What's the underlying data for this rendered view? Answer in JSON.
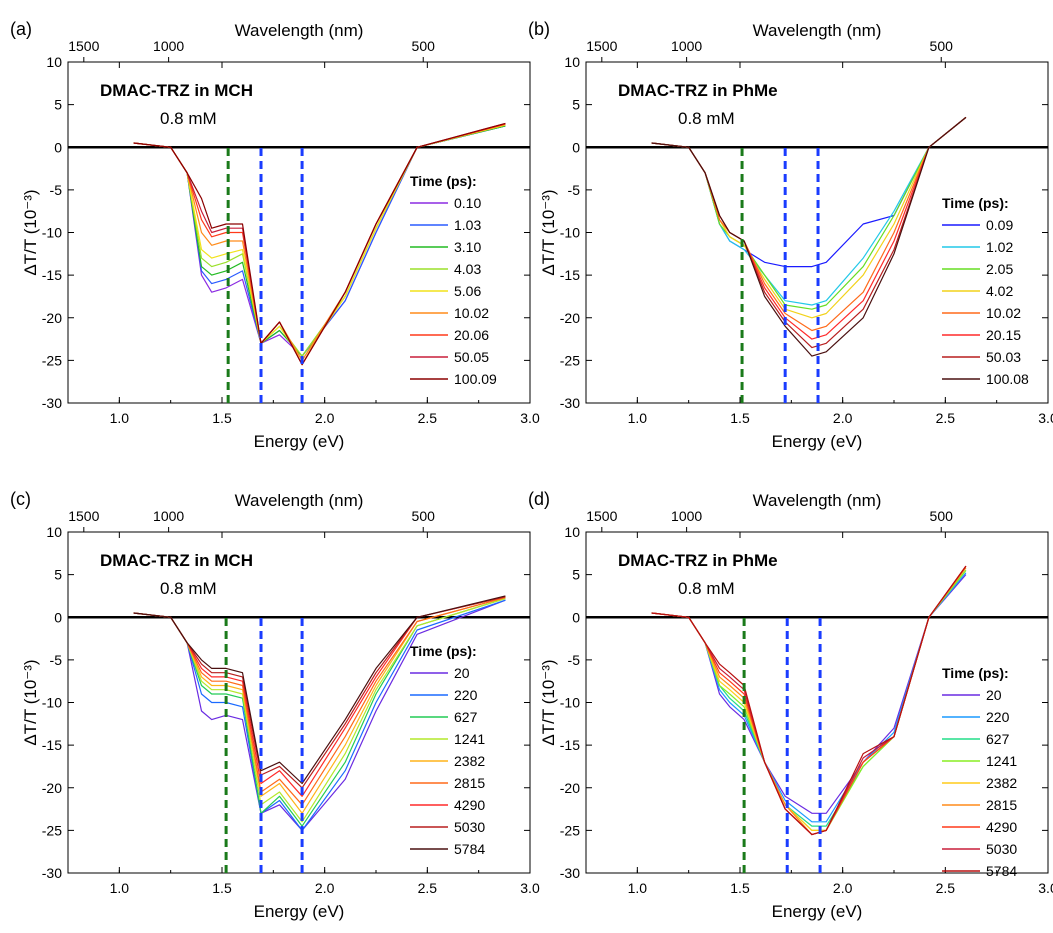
{
  "chart_data": [
    {
      "panel_label": "(a)",
      "type": "line",
      "title": "DMAC-TRZ in MCH",
      "subtitle": "0.8 mM",
      "xlabel": "Energy (eV)",
      "ylabel": "ΔT/T (10⁻³)",
      "top_xlabel": "Wavelength (nm)",
      "xlim": [
        0.75,
        3.0
      ],
      "ylim": [
        -30,
        10
      ],
      "x_ticks": [
        "1.0",
        "1.5",
        "2.0",
        "2.5",
        "3.0"
      ],
      "y_ticks": [
        "10",
        "5",
        "0",
        "-5",
        "-10",
        "-15",
        "-20",
        "-25",
        "-30"
      ],
      "top_ticks": [
        {
          "label": "1500",
          "energy": 0.827
        },
        {
          "label": "1000",
          "energy": 1.24
        },
        {
          "label": "500",
          "energy": 2.48
        }
      ],
      "vlines": [
        {
          "x": 1.53,
          "color": "#1a7a1a"
        },
        {
          "x": 1.69,
          "color": "#1a3cff"
        },
        {
          "x": 1.89,
          "color": "#1a3cff"
        }
      ],
      "legend_title": "Time (ps):",
      "legend_position": "right",
      "series": [
        {
          "name": "0.10",
          "color": "#8b2be2",
          "y": [
            0.5,
            0,
            -3,
            -15,
            -17,
            -16.5,
            -15.5,
            -23,
            -22,
            -24.5,
            -18,
            -10,
            0,
            2.5
          ]
        },
        {
          "name": "1.03",
          "color": "#2a5bff",
          "y": [
            0.5,
            0,
            -3,
            -14.5,
            -16,
            -15.5,
            -14.5,
            -23,
            -21.5,
            -24.5,
            -18,
            -10,
            0,
            2.5
          ]
        },
        {
          "name": "3.10",
          "color": "#22bb22",
          "y": [
            0.5,
            0,
            -3,
            -14,
            -15,
            -14.5,
            -13.5,
            -23,
            -21.5,
            -24.5,
            -17.5,
            -9.5,
            0,
            2.5
          ]
        },
        {
          "name": "4.03",
          "color": "#9be02a",
          "y": [
            0.5,
            0,
            -3,
            -13,
            -14,
            -13.5,
            -12.5,
            -23,
            -21,
            -24.5,
            -17.5,
            -9.5,
            0,
            2.6
          ]
        },
        {
          "name": "5.06",
          "color": "#f2e21a",
          "y": [
            0.5,
            0,
            -3,
            -12,
            -13,
            -12.5,
            -12,
            -23,
            -21,
            -25,
            -17.5,
            -9.5,
            0,
            2.6
          ]
        },
        {
          "name": "10.02",
          "color": "#ff8c1a",
          "y": [
            0.5,
            0,
            -3,
            -10,
            -11.5,
            -11,
            -11,
            -23,
            -20.5,
            -25,
            -17,
            -9,
            0,
            2.7
          ]
        },
        {
          "name": "20.06",
          "color": "#ff3a1a",
          "y": [
            0.5,
            0,
            -3,
            -8.5,
            -10.5,
            -10,
            -10,
            -23,
            -20.5,
            -25.5,
            -17,
            -9,
            0,
            2.7
          ]
        },
        {
          "name": "50.05",
          "color": "#c81e3a",
          "y": [
            0.5,
            0,
            -3,
            -7.5,
            -10,
            -9.5,
            -9.5,
            -23,
            -20.5,
            -25.5,
            -17,
            -9,
            0,
            2.8
          ]
        },
        {
          "name": "100.09",
          "color": "#8b0000",
          "y": [
            0.5,
            0,
            -3,
            -6,
            -9.5,
            -9,
            -9,
            -23,
            -20.5,
            -25.5,
            -17,
            -9,
            0,
            2.8
          ]
        }
      ]
    },
    {
      "panel_label": "(b)",
      "type": "line",
      "title": "DMAC-TRZ in PhMe",
      "subtitle": "0.8 mM",
      "xlabel": "Energy (eV)",
      "ylabel": "ΔT/T (10⁻³)",
      "top_xlabel": "Wavelength (nm)",
      "xlim": [
        0.75,
        3.0
      ],
      "ylim": [
        -30,
        10
      ],
      "x_ticks": [
        "1.0",
        "1.5",
        "2.0",
        "2.5",
        "3.0"
      ],
      "y_ticks": [
        "10",
        "5",
        "0",
        "-5",
        "-10",
        "-15",
        "-20",
        "-25",
        "-30"
      ],
      "top_ticks": [
        {
          "label": "1500",
          "energy": 0.827
        },
        {
          "label": "1000",
          "energy": 1.24
        },
        {
          "label": "500",
          "energy": 2.48
        }
      ],
      "vlines": [
        {
          "x": 1.51,
          "color": "#1a7a1a"
        },
        {
          "x": 1.72,
          "color": "#1a3cff"
        },
        {
          "x": 1.88,
          "color": "#1a3cff"
        }
      ],
      "legend_title": "Time (ps):",
      "legend_position": "right",
      "series": [
        {
          "name": "0.09",
          "color": "#1a1aff",
          "y": [
            0.5,
            0,
            -3,
            -9,
            -11,
            -12,
            -13.5,
            -14,
            -14,
            -13.5,
            -9,
            -8,
            0,
            3.5
          ]
        },
        {
          "name": "1.02",
          "color": "#22c8e8",
          "y": [
            0.5,
            0,
            -3,
            -9,
            -11,
            -12,
            -15,
            -18,
            -18.5,
            -18,
            -13,
            -7.5,
            0,
            3.5
          ]
        },
        {
          "name": "2.05",
          "color": "#66dd22",
          "y": [
            0.5,
            0,
            -3,
            -9,
            -10.5,
            -11.5,
            -15,
            -18.5,
            -19,
            -18.5,
            -14,
            -8,
            0,
            3.5
          ]
        },
        {
          "name": "4.02",
          "color": "#f2d21a",
          "y": [
            0.5,
            0,
            -3,
            -8.5,
            -10.5,
            -11.5,
            -15.5,
            -19,
            -20,
            -19.5,
            -15,
            -9,
            0,
            3.5
          ]
        },
        {
          "name": "10.02",
          "color": "#ff6a1a",
          "y": [
            0.5,
            0,
            -3,
            -8.5,
            -10,
            -11,
            -16,
            -19.5,
            -21.5,
            -21,
            -17,
            -10,
            0,
            3.5
          ]
        },
        {
          "name": "20.15",
          "color": "#ff2a2a",
          "y": [
            0.5,
            0,
            -3,
            -8,
            -10,
            -11,
            -16.5,
            -20,
            -22.5,
            -22,
            -18,
            -11,
            0,
            3.5
          ]
        },
        {
          "name": "50.03",
          "color": "#b81e1e",
          "y": [
            0.5,
            0,
            -3,
            -8,
            -10,
            -11,
            -17,
            -20.5,
            -23.5,
            -23,
            -19,
            -12,
            0,
            3.5
          ]
        },
        {
          "name": "100.08",
          "color": "#4a1010",
          "y": [
            0.5,
            0,
            -3,
            -8,
            -10,
            -11,
            -17.5,
            -21,
            -24.5,
            -24,
            -20,
            -12.5,
            0,
            3.5
          ]
        }
      ]
    },
    {
      "panel_label": "(c)",
      "type": "line",
      "title": "DMAC-TRZ in MCH",
      "subtitle": "0.8 mM",
      "xlabel": "Energy (eV)",
      "ylabel": "ΔT/T (10⁻³)",
      "top_xlabel": "Wavelength (nm)",
      "xlim": [
        0.75,
        3.0
      ],
      "ylim": [
        -30,
        10
      ],
      "x_ticks": [
        "1.0",
        "1.5",
        "2.0",
        "2.5",
        "3.0"
      ],
      "y_ticks": [
        "10",
        "5",
        "0",
        "-5",
        "-10",
        "-15",
        "-20",
        "-25",
        "-30"
      ],
      "top_ticks": [
        {
          "label": "1500",
          "energy": 0.827
        },
        {
          "label": "1000",
          "energy": 1.24
        },
        {
          "label": "500",
          "energy": 2.48
        }
      ],
      "vlines": [
        {
          "x": 1.52,
          "color": "#1a7a1a"
        },
        {
          "x": 1.69,
          "color": "#1a3cff"
        },
        {
          "x": 1.89,
          "color": "#1a3cff"
        }
      ],
      "legend_title": "Time (ps):",
      "legend_position": "right",
      "series": [
        {
          "name": "20",
          "color": "#6a2be2",
          "y": [
            0.5,
            0,
            -3,
            -11,
            -12,
            -11.5,
            -12,
            -23,
            -22,
            -25,
            -19,
            -11,
            -2,
            2
          ]
        },
        {
          "name": "220",
          "color": "#1a6aff",
          "y": [
            0.5,
            0,
            -3,
            -9,
            -10,
            -10,
            -10.5,
            -23,
            -21.5,
            -25,
            -18,
            -10,
            -1.5,
            2
          ]
        },
        {
          "name": "627",
          "color": "#22cc55",
          "y": [
            0.5,
            0,
            -3,
            -8,
            -9,
            -9,
            -9.5,
            -23,
            -21,
            -24.5,
            -17,
            -9,
            -1,
            2.2
          ]
        },
        {
          "name": "1241",
          "color": "#b4e82a",
          "y": [
            0.5,
            0,
            -3,
            -7.5,
            -8.5,
            -8.5,
            -9,
            -22,
            -20.5,
            -24,
            -16,
            -8.5,
            -1,
            2.2
          ]
        },
        {
          "name": "2382",
          "color": "#ffb41a",
          "y": [
            0.5,
            0,
            -3,
            -7,
            -8,
            -8,
            -8.5,
            -21,
            -19.5,
            -23,
            -15,
            -8,
            -0.5,
            2.3
          ]
        },
        {
          "name": "2815",
          "color": "#ff6a1a",
          "y": [
            0.5,
            0,
            -3,
            -6.5,
            -7.5,
            -7.5,
            -8,
            -20.5,
            -19,
            -22,
            -14,
            -7.5,
            -0.5,
            2.3
          ]
        },
        {
          "name": "4290",
          "color": "#ff2a2a",
          "y": [
            0.5,
            0,
            -3,
            -6,
            -7,
            -7,
            -7.5,
            -19.5,
            -18,
            -21,
            -13,
            -7,
            0,
            2.4
          ]
        },
        {
          "name": "5030",
          "color": "#b81e1e",
          "y": [
            0.5,
            0,
            -3,
            -5.5,
            -6.5,
            -6.5,
            -7,
            -18.5,
            -17.5,
            -20,
            -12.5,
            -6.5,
            0,
            2.4
          ]
        },
        {
          "name": "5784",
          "color": "#4a1010",
          "y": [
            0.5,
            0,
            -3,
            -5,
            -6,
            -6,
            -6.5,
            -18,
            -17,
            -19.5,
            -12,
            -6,
            0,
            2.5
          ]
        }
      ]
    },
    {
      "panel_label": "(d)",
      "type": "line",
      "title": "DMAC-TRZ in PhMe",
      "subtitle": "0.8 mM",
      "xlabel": "Energy (eV)",
      "ylabel": "ΔT/T (10⁻³)",
      "top_xlabel": "Wavelength (nm)",
      "xlim": [
        0.75,
        3.0
      ],
      "ylim": [
        -30,
        10
      ],
      "x_ticks": [
        "1.0",
        "1.5",
        "2.0",
        "2.5",
        "3.0"
      ],
      "y_ticks": [
        "10",
        "5",
        "0",
        "-5",
        "-10",
        "-15",
        "-20",
        "-25",
        "-30"
      ],
      "top_ticks": [
        {
          "label": "1500",
          "energy": 0.827
        },
        {
          "label": "1000",
          "energy": 1.24
        },
        {
          "label": "500",
          "energy": 2.48
        }
      ],
      "vlines": [
        {
          "x": 1.52,
          "color": "#1a7a1a"
        },
        {
          "x": 1.73,
          "color": "#1a3cff"
        },
        {
          "x": 1.89,
          "color": "#1a3cff"
        }
      ],
      "legend_title": "Time (ps):",
      "legend_position": "right",
      "series": [
        {
          "name": "20",
          "color": "#6a2be2",
          "y": [
            0.5,
            0,
            -3,
            -9,
            -10.5,
            -12,
            -17,
            -21,
            -23,
            -23,
            -17,
            -13,
            0,
            5
          ]
        },
        {
          "name": "220",
          "color": "#1a9aff",
          "y": [
            0.5,
            0,
            -3,
            -8.5,
            -10,
            -11.5,
            -17,
            -21.5,
            -24,
            -24,
            -17,
            -13.5,
            0,
            5.2
          ]
        },
        {
          "name": "627",
          "color": "#22dd88",
          "y": [
            0.5,
            0,
            -3,
            -8,
            -9.5,
            -11,
            -17,
            -22,
            -24.5,
            -24.5,
            -17.5,
            -14,
            0,
            5.5
          ]
        },
        {
          "name": "1241",
          "color": "#88ee22",
          "y": [
            0.5,
            0,
            -3,
            -8,
            -9,
            -10.5,
            -17,
            -22,
            -25,
            -25,
            -17.5,
            -14,
            0,
            5.5
          ]
        },
        {
          "name": "2382",
          "color": "#ffcc1a",
          "y": [
            0.5,
            0,
            -3,
            -7.5,
            -8.5,
            -10,
            -17,
            -22,
            -25,
            -25,
            -17,
            -14,
            0,
            5.8
          ]
        },
        {
          "name": "2815",
          "color": "#ff8c1a",
          "y": [
            0.5,
            0,
            -3,
            -7,
            -8,
            -9.5,
            -17,
            -22,
            -25.5,
            -25,
            -17,
            -14,
            0,
            5.8
          ]
        },
        {
          "name": "4290",
          "color": "#ff3a1a",
          "y": [
            0.5,
            0,
            -3,
            -6.5,
            -7.5,
            -9,
            -17,
            -22.5,
            -25.5,
            -25,
            -17,
            -14,
            0,
            6
          ]
        },
        {
          "name": "5030",
          "color": "#c81e3a",
          "y": [
            0.5,
            0,
            -3,
            -6,
            -7,
            -8.5,
            -17,
            -22.5,
            -25.5,
            -25,
            -16.5,
            -14,
            0,
            6
          ]
        },
        {
          "name": "5784",
          "color": "#b81010",
          "y": [
            0.5,
            0,
            -3,
            -5.5,
            -6.5,
            -8,
            -17,
            -22.5,
            -25.5,
            -25,
            -16,
            -14,
            0,
            6
          ]
        }
      ],
      "x_samples": [
        1.07,
        1.25,
        1.33,
        1.4,
        1.45,
        1.52,
        1.62,
        1.72,
        1.85,
        1.92,
        2.1,
        2.25,
        2.42,
        2.6
      ]
    }
  ],
  "x_samples_default": [
    1.07,
    1.25,
    1.33,
    1.4,
    1.45,
    1.52,
    1.6,
    1.69,
    1.78,
    1.89,
    2.1,
    2.25,
    2.45,
    2.88
  ],
  "x_samples_b": [
    1.07,
    1.25,
    1.33,
    1.4,
    1.45,
    1.52,
    1.62,
    1.72,
    1.85,
    1.92,
    2.1,
    2.25,
    2.42,
    2.6
  ]
}
